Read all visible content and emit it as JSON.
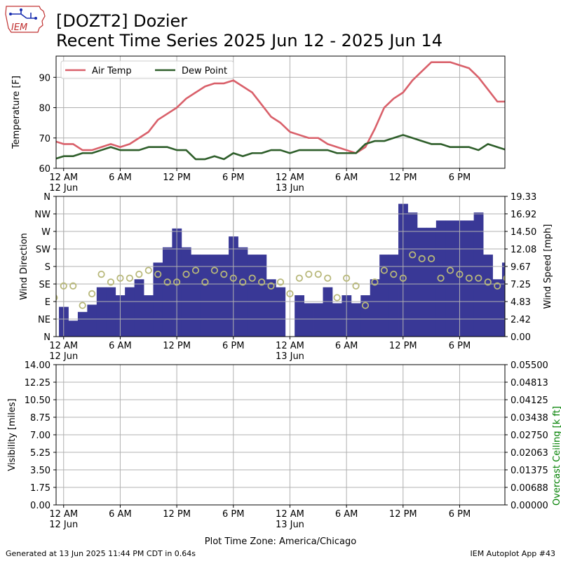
{
  "header": {
    "title_line1": "[DOZT2] Dozier",
    "title_line2": "Recent Time Series 2025 Jun 12 - 2025 Jun 14",
    "logo_text": "IEM"
  },
  "footer": {
    "generated": "Generated at 13 Jun 2025 11:44 PM CDT in 0.64s",
    "app": "IEM Autoplot App #43"
  },
  "colors": {
    "air_temp": "#d9606a",
    "dew_point": "#2e5e2a",
    "wind_speed": "#393896",
    "wind_dir": "#b8b87a",
    "ceiling_axis": "#008000"
  },
  "chart_data": [
    {
      "type": "line",
      "ylabel": "Temperature [F]",
      "ylim": [
        60,
        97
      ],
      "yticks": [
        60,
        70,
        80,
        90
      ],
      "grid": true,
      "legend": "top-left",
      "x_units": "hours since 12 Jun 2025 12 AM CDT",
      "xlim": [
        -0.8,
        46.8
      ],
      "x_ticks": [
        0,
        6,
        12,
        18,
        24,
        30,
        36,
        42
      ],
      "x_tick_labels": [
        "12 AM",
        "6 AM",
        "12 PM",
        "6 PM",
        "12 AM",
        "6 AM",
        "12 PM",
        "6 PM"
      ],
      "x_tick_sublabels": [
        "12 Jun",
        "",
        "",
        "",
        "13 Jun",
        "",
        "",
        ""
      ],
      "x": [
        -1,
        0,
        1,
        2,
        3,
        4,
        5,
        6,
        7,
        8,
        9,
        10,
        11,
        12,
        13,
        14,
        15,
        16,
        17,
        18,
        19,
        20,
        21,
        22,
        23,
        24,
        25,
        26,
        27,
        28,
        29,
        30,
        31,
        32,
        33,
        34,
        35,
        36,
        37,
        38,
        39,
        40,
        41,
        42,
        43,
        44,
        45,
        46,
        47
      ],
      "series": [
        {
          "name": "Air Temp",
          "values": [
            69,
            68,
            68,
            66,
            66,
            67,
            68,
            67,
            68,
            70,
            72,
            76,
            78,
            80,
            83,
            85,
            87,
            88,
            88,
            89,
            87,
            85,
            81,
            77,
            75,
            72,
            71,
            70,
            70,
            68,
            67,
            66,
            65,
            67,
            73,
            80,
            83,
            85,
            89,
            92,
            95,
            95,
            95,
            94,
            93,
            90,
            86,
            82,
            82
          ]
        },
        {
          "name": "Dew Point",
          "values": [
            63,
            64,
            64,
            65,
            65,
            66,
            67,
            66,
            66,
            66,
            67,
            67,
            67,
            66,
            66,
            63,
            63,
            64,
            63,
            65,
            64,
            65,
            65,
            66,
            66,
            65,
            66,
            66,
            66,
            66,
            65,
            65,
            65,
            68,
            69,
            69,
            70,
            71,
            70,
            69,
            68,
            68,
            67,
            67,
            67,
            66,
            68,
            67,
            66
          ]
        }
      ]
    },
    {
      "type": "bar",
      "ylabel": "Wind Direction",
      "y2label": "Wind Speed [mph]",
      "ylim": [
        0,
        360
      ],
      "yticks": [
        0,
        45,
        90,
        135,
        180,
        225,
        270,
        315,
        360
      ],
      "ytick_labels": [
        "N",
        "NE",
        "E",
        "SE",
        "S",
        "SW",
        "W",
        "NW",
        "N"
      ],
      "y2lim": [
        0,
        19.33
      ],
      "y2ticks": [
        0.0,
        2.42,
        4.83,
        7.25,
        9.67,
        12.08,
        14.5,
        16.92,
        19.33
      ],
      "y2tick_labels": [
        "0.00",
        "2.42",
        "4.83",
        "7.25",
        "9.67",
        "12.08",
        "14.50",
        "16.92",
        "19.33"
      ],
      "grid": true,
      "x_units": "hours since 12 Jun 2025 12 AM CDT",
      "x_tick_labels": [
        "12 AM",
        "6 AM",
        "12 PM",
        "6 PM",
        "12 AM",
        "6 AM",
        "12 PM",
        "6 PM"
      ],
      "x_tick_sublabels": [
        "12 Jun",
        "",
        "",
        "",
        "13 Jun",
        "",
        "",
        ""
      ],
      "series": [
        {
          "name": "Wind Speed",
          "axis": "right",
          "x": [
            -1,
            0,
            1,
            2,
            3,
            4,
            5,
            6,
            7,
            8,
            9,
            10,
            11,
            12,
            13,
            14,
            15,
            16,
            17,
            18,
            19,
            20,
            21,
            22,
            23,
            24,
            25,
            26,
            27,
            28,
            29,
            30,
            31,
            32,
            33,
            34,
            35,
            36,
            37,
            38,
            39,
            40,
            41,
            42,
            43,
            44,
            45,
            46,
            47
          ],
          "values": [
            0,
            4.1,
            2.2,
            3.4,
            4.4,
            6.8,
            6.8,
            5.7,
            6.8,
            7.9,
            5.7,
            10.2,
            12.3,
            14.9,
            12.3,
            11.3,
            11.3,
            11.3,
            11.3,
            13.8,
            12.3,
            11.3,
            11.3,
            7.9,
            6.8,
            0,
            5.7,
            4.6,
            4.6,
            6.8,
            4.6,
            5.7,
            4.6,
            5.7,
            7.9,
            11.3,
            11.3,
            18.3,
            17.1,
            15.0,
            15.0,
            16.0,
            16.0,
            16.0,
            16.0,
            17.1,
            11.3,
            7.9,
            10.2
          ]
        },
        {
          "name": "Wind Direction",
          "axis": "left",
          "x": [
            -1,
            0,
            1,
            2,
            3,
            4,
            5,
            6,
            7,
            8,
            9,
            10,
            11,
            12,
            13,
            14,
            15,
            16,
            17,
            18,
            19,
            20,
            21,
            22,
            23,
            24,
            25,
            26,
            27,
            28,
            29,
            30,
            31,
            32,
            33,
            34,
            35,
            36,
            37,
            38,
            39,
            40,
            41,
            42,
            43,
            44,
            45,
            46,
            47
          ],
          "values": [
            100,
            130,
            130,
            80,
            110,
            160,
            140,
            150,
            150,
            160,
            170,
            160,
            140,
            140,
            160,
            170,
            140,
            170,
            160,
            150,
            140,
            150,
            140,
            130,
            140,
            110,
            150,
            160,
            160,
            150,
            100,
            150,
            130,
            80,
            140,
            170,
            160,
            150,
            210,
            200,
            200,
            150,
            170,
            160,
            150,
            150,
            140,
            130,
            150
          ]
        }
      ]
    },
    {
      "type": "line",
      "ylabel": "Visibility [miles]",
      "y2label": "Overcast Ceiling [k ft]",
      "ylim": [
        0,
        14
      ],
      "yticks": [
        0.0,
        1.75,
        3.5,
        5.25,
        7.0,
        8.75,
        10.5,
        12.25,
        14.0
      ],
      "ytick_labels": [
        "0.00",
        "1.75",
        "3.50",
        "5.25",
        "7.00",
        "8.75",
        "10.50",
        "12.25",
        "14.00"
      ],
      "y2lim": [
        0,
        0.055
      ],
      "y2tick_labels": [
        "0.00000",
        "0.00688",
        "0.01375",
        "0.02063",
        "0.02750",
        "0.03438",
        "0.04125",
        "0.04813",
        "0.05500"
      ],
      "grid": true,
      "xlabel": "Plot Time Zone: America/Chicago",
      "x_units": "hours since 12 Jun 2025 12 AM CDT",
      "x_tick_labels": [
        "12 AM",
        "6 AM",
        "12 PM",
        "6 PM",
        "12 AM",
        "6 AM",
        "12 PM",
        "6 PM"
      ],
      "x_tick_sublabels": [
        "12 Jun",
        "",
        "",
        "",
        "13 Jun",
        "",
        "",
        ""
      ],
      "series": []
    }
  ]
}
